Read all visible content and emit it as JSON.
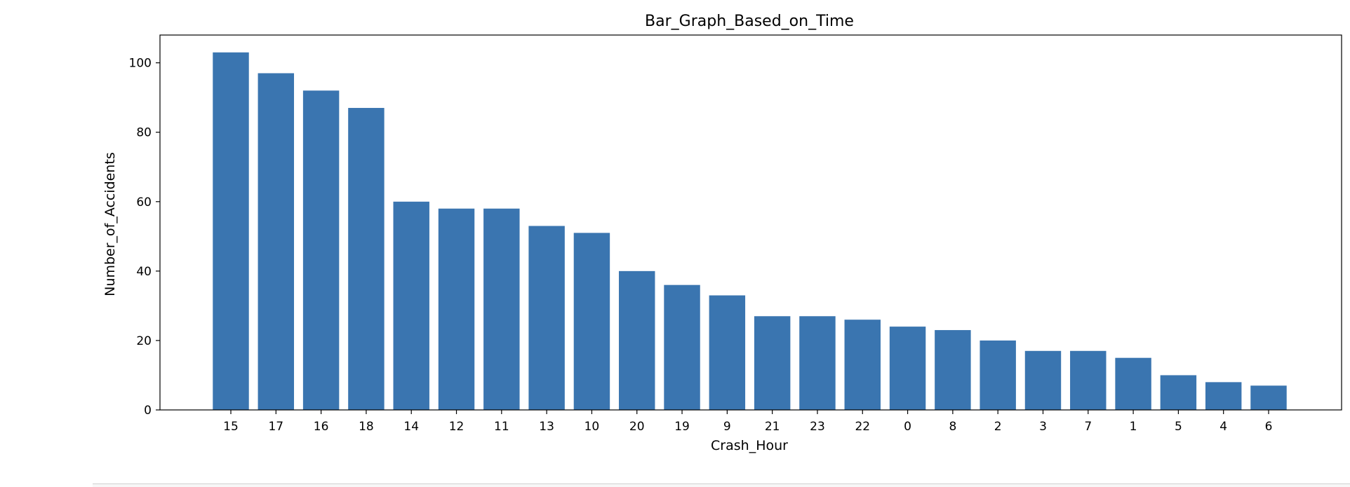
{
  "chart_data": {
    "type": "bar",
    "title": "Bar_Graph_Based_on_Time",
    "xlabel": "Crash_Hour",
    "ylabel": "Number_of_Accidents",
    "categories": [
      "15",
      "17",
      "16",
      "18",
      "14",
      "12",
      "11",
      "13",
      "10",
      "20",
      "19",
      "9",
      "21",
      "23",
      "22",
      "0",
      "8",
      "2",
      "3",
      "7",
      "1",
      "5",
      "4",
      "6"
    ],
    "values": [
      103,
      97,
      92,
      87,
      60,
      58,
      58,
      53,
      51,
      40,
      36,
      33,
      27,
      27,
      26,
      24,
      23,
      20,
      17,
      17,
      15,
      10,
      8,
      7
    ],
    "ylim": [
      0,
      108
    ],
    "yticks": [
      0,
      20,
      40,
      60,
      80,
      100
    ],
    "grid": false,
    "bar_color": "#3a75b0"
  }
}
